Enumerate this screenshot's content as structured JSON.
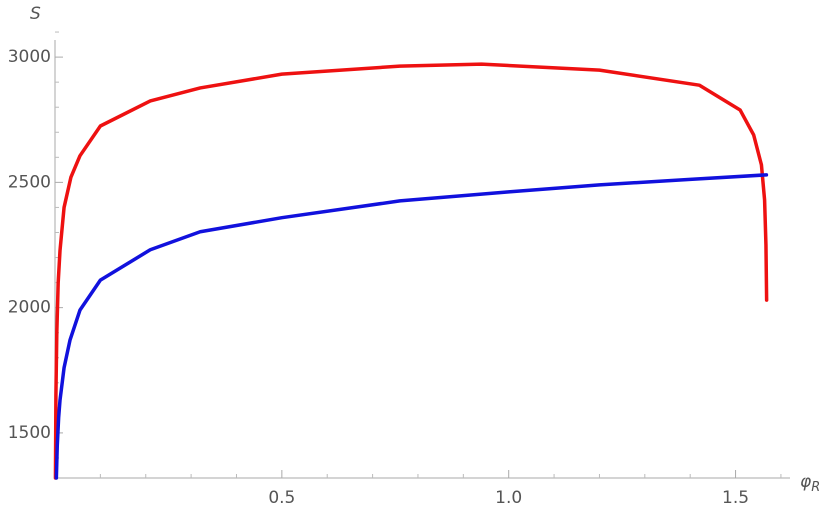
{
  "chart_data": {
    "type": "line",
    "y_label": "S",
    "x_label": "φ",
    "x_label_subscript": "R",
    "xlim": [
      0,
      1.62
    ],
    "ylim": [
      1320,
      3200
    ],
    "xticks": [
      0.5,
      {
        "value": 1,
        "label": "1.0"
      },
      1.5
    ],
    "yticks": [
      1500,
      2000,
      2500,
      3000
    ],
    "xticks_minor": [
      0.1,
      0.2,
      0.3,
      0.4,
      0.6,
      0.7,
      0.8,
      0.9,
      1.1,
      1.2,
      1.3,
      1.4,
      1.6
    ],
    "yticks_minor": [
      1400,
      1600,
      1700,
      1800,
      1900,
      2100,
      2200,
      2300,
      2400,
      2600,
      2700,
      2800,
      2900,
      3100
    ],
    "series": [
      {
        "color": "#ee1111",
        "x": [
          0.001,
          0.002,
          0.004,
          0.007,
          0.011,
          0.02,
          0.035,
          0.055,
          0.1,
          0.21,
          0.32,
          0.5,
          0.76,
          0.94,
          1.2,
          1.42,
          1.51,
          1.54,
          1.557,
          1.564,
          1.567,
          1.5685
        ],
        "values": [
          1320,
          1650,
          1900,
          2100,
          2227,
          2400,
          2520,
          2606,
          2725,
          2825,
          2877,
          2932,
          2964,
          2972,
          2948,
          2888,
          2789,
          2689,
          2570,
          2430,
          2250,
          2030
        ]
      },
      {
        "color": "#1111dd",
        "x": [
          0.003,
          0.005,
          0.008,
          0.011,
          0.02,
          0.033,
          0.055,
          0.1,
          0.21,
          0.32,
          0.5,
          0.76,
          1.0,
          1.2,
          1.4,
          1.568
        ],
        "values": [
          1320,
          1450,
          1560,
          1630,
          1760,
          1870,
          1990,
          2110,
          2231,
          2303,
          2359,
          2426,
          2462,
          2490,
          2512,
          2530
        ]
      }
    ]
  }
}
